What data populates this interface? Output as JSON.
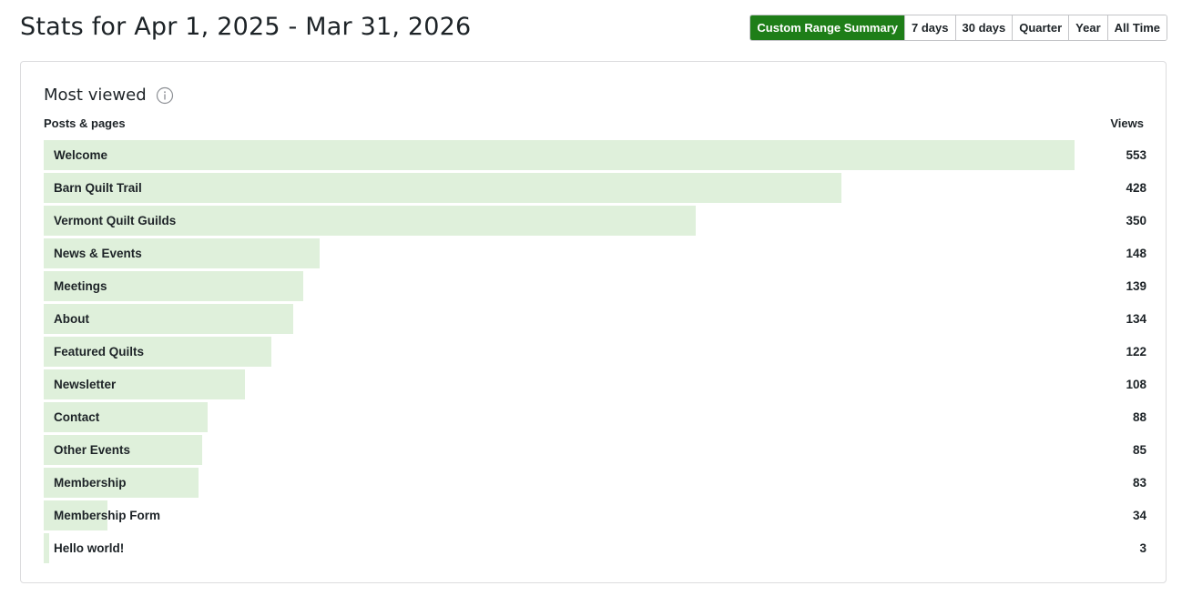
{
  "page_title": "Stats for Apr 1, 2025 - Mar 31, 2026",
  "range_tabs": [
    {
      "label": "Custom Range Summary",
      "active": true
    },
    {
      "label": "7 days",
      "active": false
    },
    {
      "label": "30 days",
      "active": false
    },
    {
      "label": "Quarter",
      "active": false
    },
    {
      "label": "Year",
      "active": false
    },
    {
      "label": "All Time",
      "active": false
    }
  ],
  "card": {
    "title": "Most viewed",
    "info_icon": "info-icon",
    "column_left": "Posts & pages",
    "column_right": "Views"
  },
  "colors": {
    "accent": "#1e7e18",
    "bar": "#dff0db"
  },
  "max_views": 553,
  "rows": [
    {
      "label": "Welcome",
      "views": 553
    },
    {
      "label": "Barn Quilt Trail",
      "views": 428
    },
    {
      "label": "Vermont Quilt Guilds",
      "views": 350
    },
    {
      "label": "News & Events",
      "views": 148
    },
    {
      "label": "Meetings",
      "views": 139
    },
    {
      "label": "About",
      "views": 134
    },
    {
      "label": "Featured Quilts",
      "views": 122
    },
    {
      "label": "Newsletter",
      "views": 108
    },
    {
      "label": "Contact",
      "views": 88
    },
    {
      "label": "Other Events",
      "views": 85
    },
    {
      "label": "Membership",
      "views": 83
    },
    {
      "label": "Membership Form",
      "views": 34
    },
    {
      "label": "Hello world!",
      "views": 3
    }
  ]
}
